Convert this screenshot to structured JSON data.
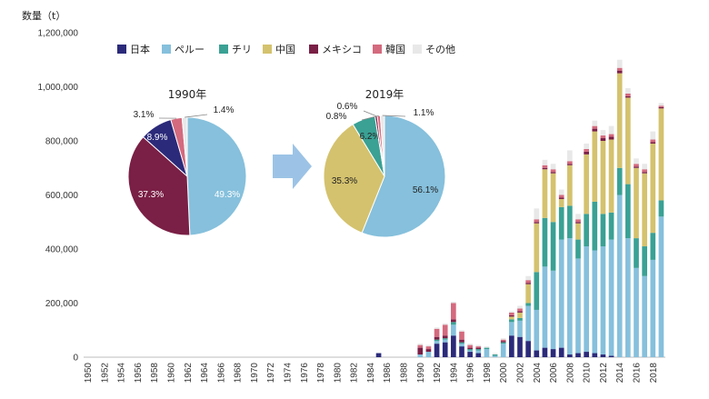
{
  "chart_data": [
    {
      "type": "bar",
      "stacked": true,
      "ylabel": "数量（t）",
      "ylim": [
        0,
        1200000
      ],
      "yticks": [
        0,
        200000,
        400000,
        600000,
        800000,
        1000000,
        1200000
      ],
      "ytick_labels": [
        "0",
        "200,000",
        "400,000",
        "600,000",
        "800,000",
        "1,000,000",
        "1,200,000"
      ],
      "x": [
        1950,
        1951,
        1952,
        1953,
        1954,
        1955,
        1956,
        1957,
        1958,
        1959,
        1960,
        1961,
        1962,
        1963,
        1964,
        1965,
        1966,
        1967,
        1968,
        1969,
        1970,
        1971,
        1972,
        1973,
        1974,
        1975,
        1976,
        1977,
        1978,
        1979,
        1980,
        1981,
        1982,
        1983,
        1984,
        1985,
        1986,
        1987,
        1988,
        1989,
        1990,
        1991,
        1992,
        1993,
        1994,
        1995,
        1996,
        1997,
        1998,
        1999,
        2000,
        2001,
        2002,
        2003,
        2004,
        2005,
        2006,
        2007,
        2008,
        2009,
        2010,
        2011,
        2012,
        2013,
        2014,
        2015,
        2016,
        2017,
        2018,
        2019
      ],
      "xtick_labels": [
        "1950",
        "1952",
        "1954",
        "1956",
        "1958",
        "1960",
        "1962",
        "1964",
        "1966",
        "1968",
        "1970",
        "1972",
        "1974",
        "1976",
        "1978",
        "1980",
        "1982",
        "1984",
        "1986",
        "1988",
        "1990",
        "1992",
        "1994",
        "1996",
        "1998",
        "2000",
        "2002",
        "2004",
        "2006",
        "2008",
        "2010",
        "2012",
        "2014",
        "2016",
        "2018"
      ],
      "legend_position": "top",
      "grid": false,
      "series": [
        {
          "name": "日本",
          "color": "#2b2a7a",
          "values": [
            0,
            0,
            0,
            0,
            0,
            0,
            0,
            0,
            0,
            0,
            0,
            0,
            0,
            0,
            0,
            0,
            0,
            0,
            0,
            0,
            0,
            0,
            0,
            0,
            0,
            0,
            0,
            0,
            0,
            0,
            0,
            0,
            0,
            0,
            0,
            15000,
            0,
            0,
            0,
            0,
            0,
            0,
            50000,
            55000,
            80000,
            40000,
            20000,
            15000,
            0,
            0,
            0,
            80000,
            75000,
            60000,
            25000,
            35000,
            30000,
            35000,
            10000,
            15000,
            20000,
            15000,
            10000,
            5000,
            0,
            0,
            0,
            0,
            0,
            0
          ]
        },
        {
          "name": "ペルー",
          "color": "#86c0dc",
          "values": [
            0,
            0,
            0,
            0,
            0,
            0,
            0,
            0,
            0,
            0,
            0,
            0,
            0,
            0,
            0,
            0,
            0,
            0,
            0,
            0,
            0,
            0,
            0,
            0,
            0,
            0,
            0,
            0,
            0,
            0,
            0,
            0,
            0,
            0,
            0,
            0,
            0,
            0,
            0,
            0,
            10000,
            20000,
            10000,
            10000,
            40000,
            10000,
            5000,
            10000,
            30000,
            5000,
            50000,
            50000,
            60000,
            130000,
            150000,
            300000,
            290000,
            400000,
            430000,
            350000,
            390000,
            380000,
            400000,
            430000,
            600000,
            440000,
            330000,
            300000,
            360000,
            520000
          ]
        },
        {
          "name": "チリ",
          "color": "#3aa194",
          "values": [
            0,
            0,
            0,
            0,
            0,
            0,
            0,
            0,
            0,
            0,
            0,
            0,
            0,
            0,
            0,
            0,
            0,
            0,
            0,
            0,
            0,
            0,
            0,
            0,
            0,
            0,
            0,
            0,
            0,
            0,
            0,
            0,
            0,
            0,
            0,
            0,
            0,
            0,
            0,
            0,
            0,
            0,
            5000,
            5000,
            10000,
            5000,
            5000,
            5000,
            5000,
            5000,
            5000,
            10000,
            10000,
            10000,
            140000,
            180000,
            180000,
            120000,
            120000,
            70000,
            120000,
            180000,
            120000,
            100000,
            100000,
            200000,
            110000,
            110000,
            100000,
            60000
          ]
        },
        {
          "name": "中国",
          "color": "#d4c26e",
          "values": [
            0,
            0,
            0,
            0,
            0,
            0,
            0,
            0,
            0,
            0,
            0,
            0,
            0,
            0,
            0,
            0,
            0,
            0,
            0,
            0,
            0,
            0,
            0,
            0,
            0,
            0,
            0,
            0,
            0,
            0,
            0,
            0,
            0,
            0,
            0,
            0,
            0,
            0,
            0,
            0,
            0,
            0,
            0,
            0,
            0,
            0,
            0,
            0,
            0,
            0,
            0,
            10000,
            20000,
            70000,
            180000,
            180000,
            180000,
            30000,
            150000,
            60000,
            220000,
            260000,
            270000,
            270000,
            350000,
            320000,
            260000,
            270000,
            330000,
            340000
          ]
        },
        {
          "name": "メキシコ",
          "color": "#7a1f45",
          "values": [
            0,
            0,
            0,
            0,
            0,
            0,
            0,
            0,
            0,
            0,
            0,
            0,
            0,
            0,
            0,
            0,
            0,
            0,
            0,
            0,
            0,
            0,
            0,
            0,
            0,
            0,
            0,
            0,
            0,
            0,
            0,
            0,
            0,
            0,
            0,
            0,
            0,
            0,
            0,
            0,
            25000,
            10000,
            10000,
            10000,
            10000,
            10000,
            5000,
            5000,
            0,
            0,
            5000,
            5000,
            5000,
            5000,
            5000,
            5000,
            5000,
            5000,
            5000,
            5000,
            10000,
            10000,
            10000,
            10000,
            10000,
            5000,
            5000,
            5000,
            5000,
            5000
          ]
        },
        {
          "name": "韓国",
          "color": "#d46a7e",
          "values": [
            0,
            0,
            0,
            0,
            0,
            0,
            0,
            0,
            0,
            0,
            0,
            0,
            0,
            0,
            0,
            0,
            0,
            0,
            0,
            0,
            0,
            0,
            0,
            0,
            0,
            0,
            0,
            0,
            0,
            0,
            0,
            0,
            0,
            0,
            0,
            0,
            0,
            0,
            0,
            0,
            10000,
            10000,
            30000,
            40000,
            60000,
            30000,
            10000,
            5000,
            0,
            0,
            5000,
            10000,
            10000,
            10000,
            10000,
            10000,
            10000,
            10000,
            10000,
            10000,
            10000,
            10000,
            10000,
            10000,
            10000,
            10000,
            10000,
            10000,
            10000,
            5000
          ]
        },
        {
          "name": "その他",
          "color": "#e8e8e8",
          "values": [
            0,
            0,
            0,
            0,
            0,
            0,
            0,
            0,
            0,
            0,
            0,
            0,
            0,
            0,
            0,
            0,
            0,
            0,
            0,
            0,
            0,
            0,
            0,
            0,
            0,
            0,
            0,
            0,
            0,
            0,
            0,
            0,
            0,
            0,
            0,
            0,
            0,
            0,
            0,
            0,
            5000,
            5000,
            5000,
            5000,
            5000,
            5000,
            5000,
            5000,
            5000,
            5000,
            5000,
            5000,
            10000,
            15000,
            40000,
            20000,
            20000,
            20000,
            40000,
            20000,
            20000,
            20000,
            20000,
            30000,
            30000,
            20000,
            20000,
            20000,
            30000,
            10000
          ]
        }
      ]
    },
    {
      "type": "pie",
      "title": "1990年",
      "slices": [
        {
          "name": "ペルー",
          "value": 49.3,
          "label": "49.3%",
          "color": "#86c0dc"
        },
        {
          "name": "メキシコ",
          "value": 37.3,
          "label": "37.3%",
          "color": "#7a1f45"
        },
        {
          "name": "日本",
          "value": 8.9,
          "label": "8.9%",
          "color": "#2b2a7a"
        },
        {
          "name": "韓国",
          "value": 3.1,
          "label": "3.1%",
          "color": "#d46a7e"
        },
        {
          "name": "その他",
          "value": 1.4,
          "label": "1.4%",
          "color": "#e8e8e8"
        }
      ]
    },
    {
      "type": "pie",
      "title": "2019年",
      "slices": [
        {
          "name": "ペルー",
          "value": 56.1,
          "label": "56.1%",
          "color": "#86c0dc"
        },
        {
          "name": "中国",
          "value": 35.3,
          "label": "35.3%",
          "color": "#d4c26e"
        },
        {
          "name": "チリ",
          "value": 6.2,
          "label": "6.2%",
          "color": "#3aa194"
        },
        {
          "name": "メキシコ",
          "value": 0.6,
          "label": "0.6%",
          "color": "#7a1f45"
        },
        {
          "name": "韓国",
          "value": 0.8,
          "label": "0.8%",
          "color": "#d46a7e"
        },
        {
          "name": "その他",
          "value": 1.1,
          "label": "1.1%",
          "color": "#e8e8e8"
        }
      ]
    }
  ],
  "arrow": {
    "color": "#9cc3e6"
  }
}
